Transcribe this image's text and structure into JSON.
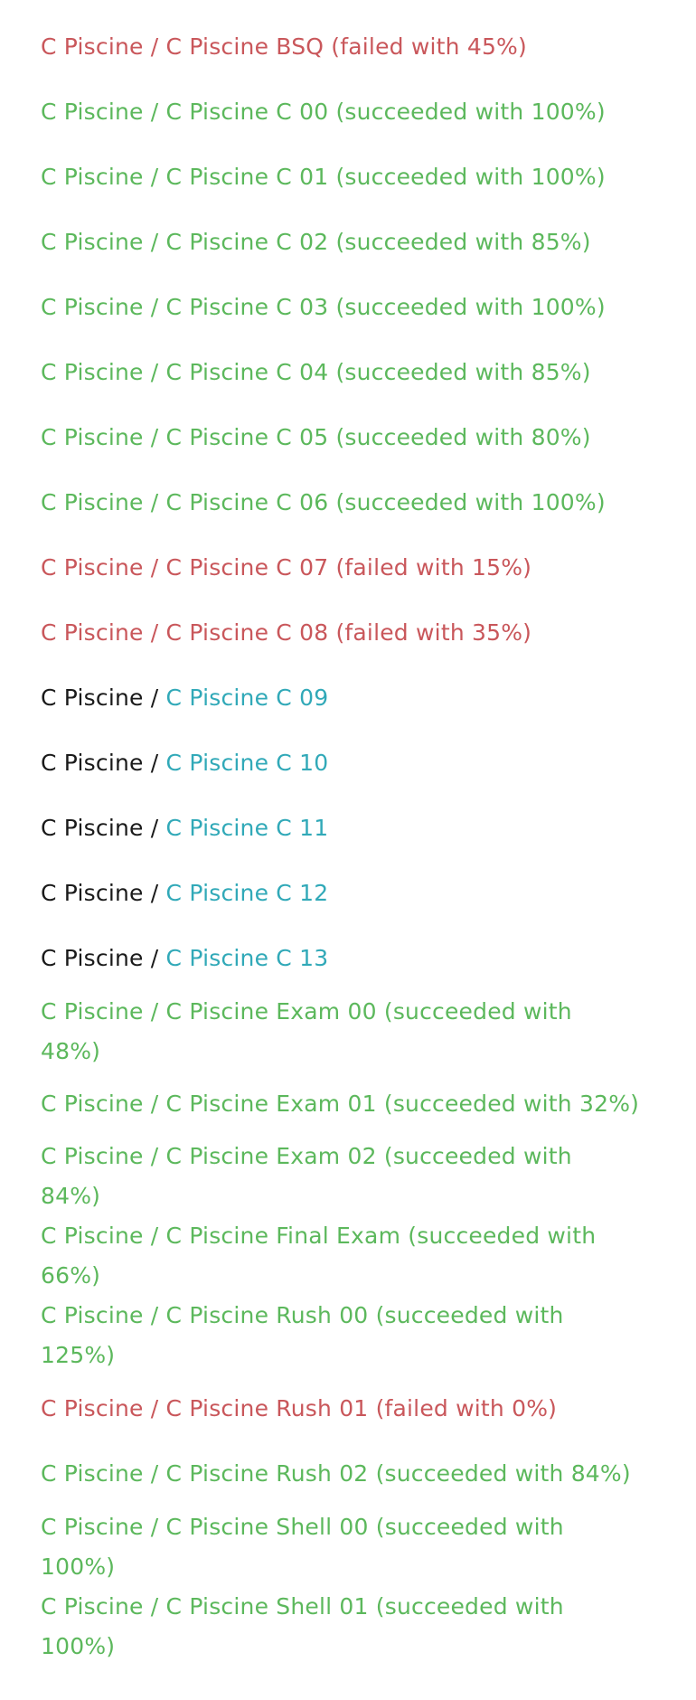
{
  "colors": {
    "failed": "#c9575b",
    "succeeded": "#5cb85c",
    "link": "#31a9b8",
    "text": "#1a1a1a"
  },
  "projects": [
    {
      "status": "failed",
      "text": "C Piscine / C Piscine BSQ (failed with 45%)"
    },
    {
      "status": "succeeded",
      "text": "C Piscine / C Piscine C 00 (succeeded with 100%)"
    },
    {
      "status": "succeeded",
      "text": "C Piscine / C Piscine C 01 (succeeded with 100%)"
    },
    {
      "status": "succeeded",
      "text": "C Piscine / C Piscine C 02 (succeeded with 85%)"
    },
    {
      "status": "succeeded",
      "text": "C Piscine / C Piscine C 03 (succeeded with 100%)"
    },
    {
      "status": "succeeded",
      "text": "C Piscine / C Piscine C 04 (succeeded with 85%)"
    },
    {
      "status": "succeeded",
      "text": "C Piscine / C Piscine C 05 (succeeded with 80%)"
    },
    {
      "status": "succeeded",
      "text": "C Piscine / C Piscine C 06 (succeeded with 100%)"
    },
    {
      "status": "failed",
      "text": "C Piscine / C Piscine C 07 (failed with 15%)"
    },
    {
      "status": "failed",
      "text": "C Piscine / C Piscine C 08 (failed with 35%)"
    },
    {
      "status": "pending",
      "prefix": "C Piscine / ",
      "link": "C Piscine C 09"
    },
    {
      "status": "pending",
      "prefix": "C Piscine / ",
      "link": "C Piscine C 10"
    },
    {
      "status": "pending",
      "prefix": "C Piscine / ",
      "link": "C Piscine C 11"
    },
    {
      "status": "pending",
      "prefix": "C Piscine / ",
      "link": "C Piscine C 12"
    },
    {
      "status": "pending",
      "prefix": "C Piscine / ",
      "link": "C Piscine C 13"
    },
    {
      "status": "succeeded",
      "text": "C Piscine / C Piscine Exam 00 (succeeded with 48%)"
    },
    {
      "status": "succeeded",
      "text": "C Piscine / C Piscine Exam 01 (succeeded with 32%)"
    },
    {
      "status": "succeeded",
      "text": "C Piscine / C Piscine Exam 02 (succeeded with 84%)"
    },
    {
      "status": "succeeded",
      "text": "C Piscine / C Piscine Final Exam (succeeded with 66%)"
    },
    {
      "status": "succeeded",
      "text": "C Piscine / C Piscine Rush 00 (succeeded with 125%)"
    },
    {
      "status": "failed",
      "text": "C Piscine / C Piscine Rush 01 (failed with 0%)"
    },
    {
      "status": "succeeded",
      "text": "C Piscine / C Piscine Rush 02 (succeeded with 84%)"
    },
    {
      "status": "succeeded",
      "text": "C Piscine / C Piscine Shell 00 (succeeded with 100%)"
    },
    {
      "status": "succeeded",
      "text": "C Piscine / C Piscine Shell 01 (succeeded with 100%)"
    }
  ]
}
